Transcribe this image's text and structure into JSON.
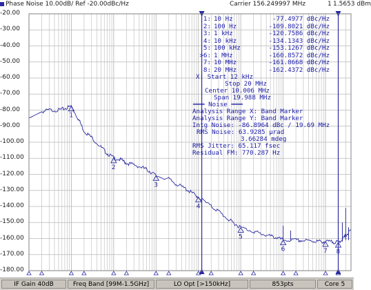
{
  "header": {
    "title": "Phase Noise 10.00dB/ Ref -20.00dBc/Hz",
    "carrier": "Carrier 156.249997 MHz",
    "carrier_level": "1.5653 dBm",
    "trace_marker": "1"
  },
  "y_axis_labels": [
    "-20.00",
    "-30.00",
    "-40.00",
    "-50.00",
    "-60.00",
    "-70.00",
    "-80.00",
    "-90.00",
    "-100.00",
    "-110.00",
    "-120.00",
    "-130.00",
    "-140.00",
    "-150.00",
    "-160.00",
    "-170.00",
    "-180.00"
  ],
  "marker_table": [
    {
      "id": "1:",
      "freq": "10 Hz",
      "value": "-77.4977 dBc/Hz"
    },
    {
      "id": "2:",
      "freq": "100 Hz",
      "value": "-109.8021 dBc/Hz"
    },
    {
      "id": "3:",
      "freq": "1 kHz",
      "value": "-120.7586 dBc/Hz"
    },
    {
      "id": "4:",
      "freq": "10 kHz",
      "value": "-134.1343 dBc/Hz"
    },
    {
      "id": "5:",
      "freq": "100 kHz",
      "value": "-153.1267 dBc/Hz"
    },
    {
      "id": ">6:",
      "freq": "1 MHz",
      "value": "-160.8572 dBc/Hz"
    },
    {
      "id": "7:",
      "freq": "10 MHz",
      "value": "-161.8668 dBc/Hz"
    },
    {
      "id": "8:",
      "freq": "20 MHz",
      "value": "-162.4372 dBc/Hz"
    }
  ],
  "sweep": {
    "start": "X: Start 12 kHz",
    "stop": "Stop 20 MHz",
    "center": "Center 10.006 MHz",
    "span": "Span 19.988 MHz"
  },
  "noise": {
    "title": "═══ Noise ═══",
    "range_x": "Analysis Range X: Band Marker",
    "range_y": "Analysis Range Y: Band Marker",
    "intg": "Intg Noise: -86.8964 dBc / 19.69 MHz",
    "rms_noise": "RMS Noise: 63.9285 µrad",
    "rms_deg": "3.66284 mdeg",
    "rms_jitter": "RMS Jitter: 65.117 fsec",
    "residual_fm": "Residual FM: 770.287 Hz"
  },
  "markers": [
    {
      "label": "1",
      "freq_hz": 10,
      "level": -77.5
    },
    {
      "label": "2",
      "freq_hz": 100,
      "level": -109.8
    },
    {
      "label": "3",
      "freq_hz": 1000,
      "level": -120.8
    },
    {
      "label": "4",
      "freq_hz": 10000,
      "level": -134.1
    },
    {
      "label": "5",
      "freq_hz": 100000,
      "level": -153.1
    },
    {
      "label": "6",
      "freq_hz": 1000000,
      "level": -160.9
    },
    {
      "label": "7",
      "freq_hz": 10000000,
      "level": -161.9
    },
    {
      "label": "8",
      "freq_hz": 20000000,
      "level": -162.4
    }
  ],
  "chart_data": {
    "type": "line",
    "title": "Phase Noise 10.00dB/ Ref -20.00dBc/Hz",
    "x_scale": "log",
    "xlim_hz": [
      1,
      40000000
    ],
    "ylim": [
      -180,
      -20
    ],
    "grid": true,
    "series": [
      {
        "points": [
          [
            1,
            -85
          ],
          [
            2,
            -81
          ],
          [
            3,
            -80
          ],
          [
            5,
            -80
          ],
          [
            7,
            -79
          ],
          [
            10,
            -77.5
          ],
          [
            15,
            -86
          ],
          [
            20,
            -93
          ],
          [
            30,
            -97
          ],
          [
            50,
            -103
          ],
          [
            70,
            -107
          ],
          [
            100,
            -109.8
          ],
          [
            150,
            -111
          ],
          [
            200,
            -113
          ],
          [
            300,
            -114
          ],
          [
            500,
            -116
          ],
          [
            700,
            -118
          ],
          [
            1000,
            -120.8
          ],
          [
            2000,
            -123
          ],
          [
            3000,
            -126
          ],
          [
            5000,
            -129
          ],
          [
            7000,
            -131.5
          ],
          [
            10000,
            -134.1
          ],
          [
            20000,
            -140
          ],
          [
            30000,
            -143
          ],
          [
            50000,
            -148
          ],
          [
            70000,
            -150.5
          ],
          [
            100000,
            -153.1
          ],
          [
            200000,
            -155.5
          ],
          [
            300000,
            -157
          ],
          [
            500000,
            -158.5
          ],
          [
            700000,
            -159.5
          ],
          [
            1000000,
            -160.9
          ],
          [
            2000000,
            -161.1
          ],
          [
            3000000,
            -161.3
          ],
          [
            5000000,
            -161.6
          ],
          [
            7000000,
            -161.8
          ],
          [
            10000000,
            -161.9
          ],
          [
            15000000,
            -162.1
          ],
          [
            20000000,
            -162.4
          ],
          [
            25000000,
            -160.5
          ],
          [
            30000000,
            -158
          ],
          [
            40000000,
            -155
          ]
        ]
      }
    ],
    "spurs": [
      {
        "freq_hz": 1000000,
        "level": -152
      },
      {
        "freq_hz": 1500000,
        "level": -155
      },
      {
        "freq_hz": 25000000,
        "level": -150
      },
      {
        "freq_hz": 30000000,
        "level": -141
      },
      {
        "freq_hz": 35000000,
        "level": -153
      }
    ]
  },
  "status_bar": {
    "if_gain": "IF Gain 40dB",
    "freq_band": "Freq Band [99M-1.5GHz]",
    "lo_opt": "LO Opt [>150kHz]",
    "points": "853pts",
    "core": "Core 5"
  },
  "colors": {
    "trace": "#2a2aa0",
    "grid": "#b8b8b8",
    "text": "#1a1aa8",
    "background": "#ffffff"
  }
}
